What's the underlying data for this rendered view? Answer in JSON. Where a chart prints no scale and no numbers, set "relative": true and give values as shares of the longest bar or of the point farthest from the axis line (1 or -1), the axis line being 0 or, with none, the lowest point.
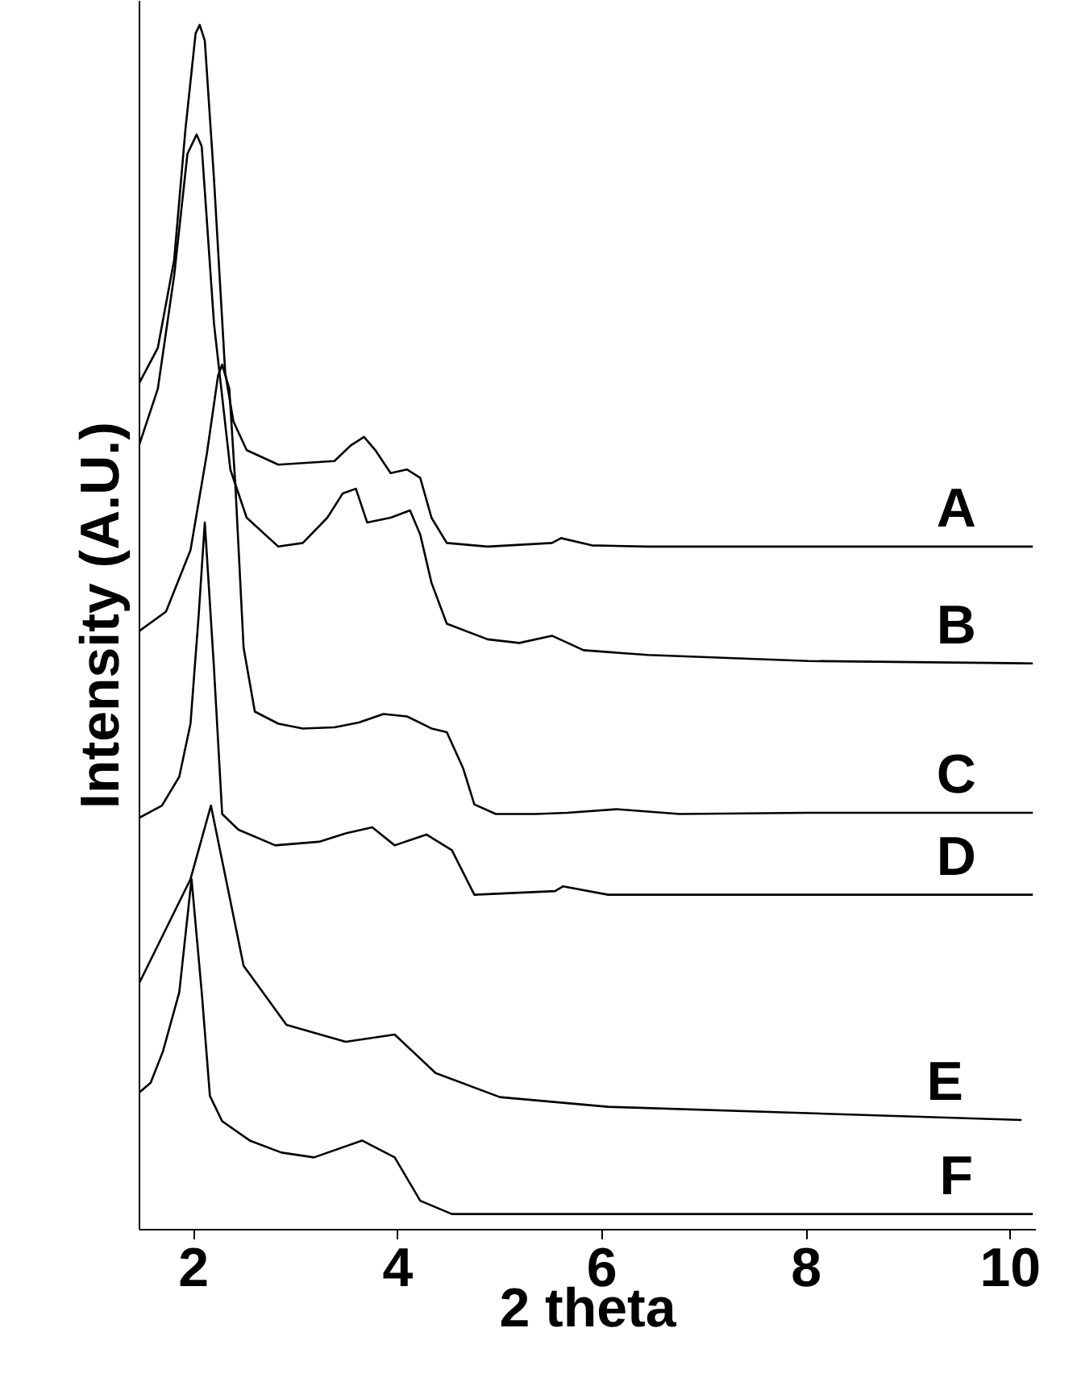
{
  "chart_data": {
    "type": "line",
    "relative": true,
    "xlabel": "2 theta",
    "ylabel": "Intensity (A.U.)",
    "xlim": [
      1.47,
      10.25
    ],
    "xticks": [
      2,
      4,
      6,
      8,
      10
    ],
    "grid": false,
    "marker": "none",
    "line_style": "solid",
    "series": [
      {
        "name": "A",
        "color": "#000000",
        "x": [
          1.47,
          1.65,
          1.81,
          1.92,
          2.02,
          2.06,
          2.11,
          2.2,
          2.31,
          2.39,
          2.52,
          2.83,
          3.38,
          3.54,
          3.67,
          3.78,
          3.93,
          4.09,
          4.22,
          4.33,
          4.48,
          4.88,
          5.51,
          5.6,
          5.9,
          6.45,
          10.22
        ],
        "values": [
          0.703,
          0.732,
          0.805,
          0.913,
          0.993,
          1.0,
          0.987,
          0.872,
          0.711,
          0.671,
          0.647,
          0.635,
          0.638,
          0.651,
          0.658,
          0.647,
          0.628,
          0.631,
          0.624,
          0.591,
          0.57,
          0.567,
          0.57,
          0.574,
          0.568,
          0.567,
          0.567
        ]
      },
      {
        "name": "B",
        "color": "#000000",
        "x": [
          1.47,
          1.65,
          1.81,
          1.94,
          2.03,
          2.08,
          2.2,
          2.36,
          2.52,
          2.83,
          3.07,
          3.31,
          3.46,
          3.59,
          3.7,
          3.93,
          4.12,
          4.22,
          4.33,
          4.48,
          4.88,
          5.19,
          5.51,
          5.82,
          6.45,
          8.02,
          10.22
        ],
        "values": [
          0.652,
          0.698,
          0.792,
          0.893,
          0.909,
          0.899,
          0.752,
          0.631,
          0.591,
          0.567,
          0.57,
          0.591,
          0.611,
          0.615,
          0.587,
          0.591,
          0.597,
          0.577,
          0.537,
          0.503,
          0.49,
          0.487,
          0.493,
          0.481,
          0.477,
          0.472,
          0.47
        ]
      },
      {
        "name": "C",
        "color": "#000000",
        "x": [
          1.47,
          1.73,
          1.97,
          2.13,
          2.24,
          2.28,
          2.35,
          2.41,
          2.49,
          2.6,
          2.83,
          3.07,
          3.38,
          3.62,
          3.86,
          4.09,
          4.33,
          4.48,
          4.64,
          4.75,
          4.96,
          5.35,
          5.66,
          6.14,
          6.76,
          8.02,
          10.22
        ],
        "values": [
          0.497,
          0.513,
          0.564,
          0.644,
          0.709,
          0.718,
          0.698,
          0.617,
          0.483,
          0.43,
          0.42,
          0.416,
          0.417,
          0.421,
          0.428,
          0.426,
          0.416,
          0.413,
          0.383,
          0.353,
          0.345,
          0.345,
          0.346,
          0.349,
          0.345,
          0.346,
          0.346
        ]
      },
      {
        "name": "D",
        "color": "#000000",
        "x": [
          1.47,
          1.69,
          1.86,
          1.97,
          2.05,
          2.11,
          2.2,
          2.28,
          2.44,
          2.8,
          3.23,
          3.49,
          3.75,
          3.97,
          4.28,
          4.53,
          4.75,
          5.54,
          5.62,
          6.06,
          10.22
        ],
        "values": [
          0.342,
          0.352,
          0.376,
          0.42,
          0.51,
          0.587,
          0.466,
          0.345,
          0.332,
          0.319,
          0.322,
          0.329,
          0.334,
          0.319,
          0.328,
          0.315,
          0.278,
          0.281,
          0.285,
          0.278,
          0.278
        ]
      },
      {
        "name": "E",
        "color": "#000000",
        "x": [
          1.47,
          1.97,
          2.17,
          2.49,
          2.91,
          3.49,
          3.97,
          4.37,
          5.0,
          6.06,
          10.11
        ],
        "values": [
          0.205,
          0.291,
          0.352,
          0.219,
          0.17,
          0.156,
          0.162,
          0.13,
          0.11,
          0.102,
          0.091
        ]
      },
      {
        "name": "F",
        "color": "#000000",
        "x": [
          1.47,
          1.58,
          1.7,
          1.86,
          1.98,
          2.08,
          2.16,
          2.28,
          2.55,
          2.86,
          3.18,
          3.65,
          3.97,
          4.22,
          4.53,
          6.06,
          10.22
        ],
        "values": [
          0.114,
          0.122,
          0.148,
          0.197,
          0.291,
          0.197,
          0.111,
          0.09,
          0.074,
          0.064,
          0.06,
          0.074,
          0.06,
          0.024,
          0.013,
          0.013,
          0.013
        ]
      }
    ]
  }
}
